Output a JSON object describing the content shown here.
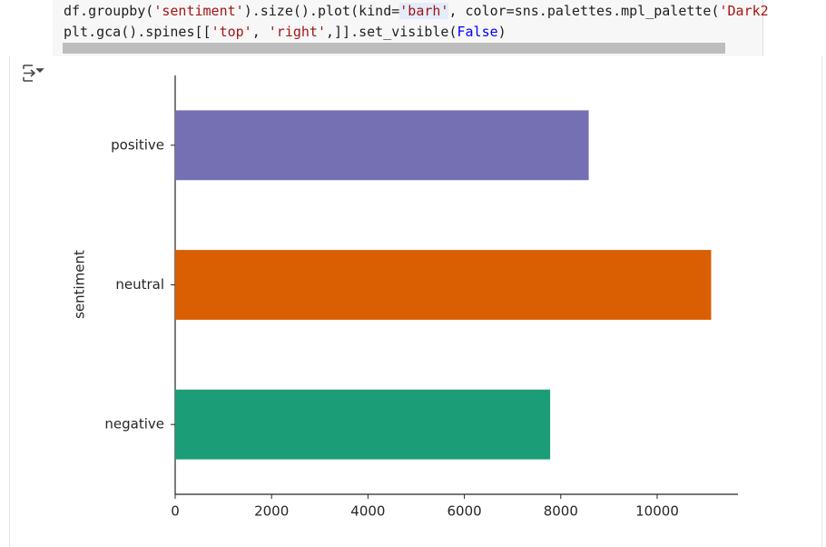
{
  "code": {
    "lines": [
      [
        "df.groupby(",
        "'sentiment'",
        ").size().plot(",
        "kind=",
        "'barh'",
        ", color=sns.palettes.mpl_palette(",
        "'Dark2"
      ],
      [
        "plt.gca().spines[[",
        "'top'",
        ", ",
        "'right'",
        ",]].set_visible(",
        "False",
        ")"
      ]
    ]
  },
  "chart_data": {
    "type": "barh",
    "categories": [
      "negative",
      "neutral",
      "positive"
    ],
    "values": [
      7780,
      11120,
      8580
    ],
    "colors": [
      "#1b9e77",
      "#d95f02",
      "#7570b3"
    ],
    "ylabel": "sentiment",
    "xlim": [
      0,
      11676
    ],
    "xticks": [
      0,
      2000,
      4000,
      6000,
      8000,
      10000
    ]
  }
}
